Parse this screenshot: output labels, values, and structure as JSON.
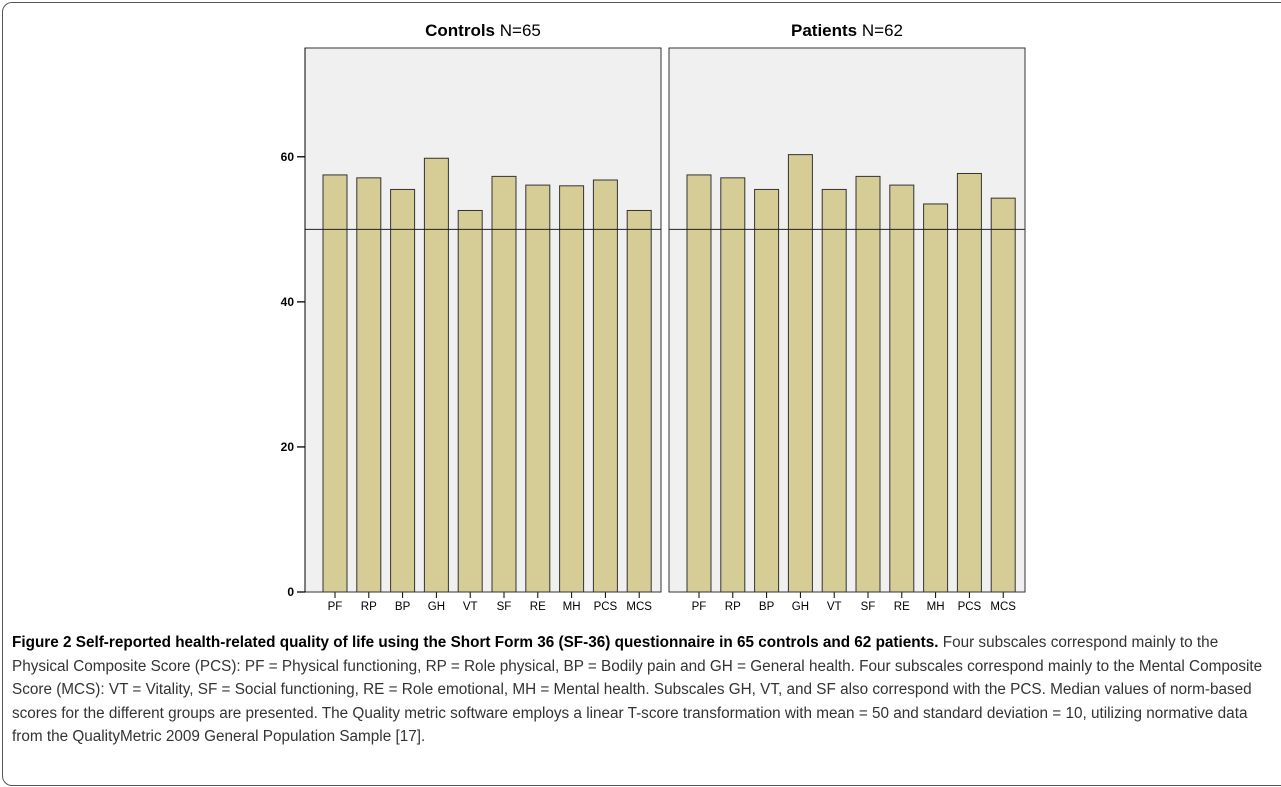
{
  "chart_data": {
    "type": "bar",
    "categories": [
      "PF",
      "RP",
      "BP",
      "GH",
      "VT",
      "SF",
      "RE",
      "MH",
      "PCS",
      "MCS"
    ],
    "ylim": [
      0,
      75
    ],
    "y_ticks": [
      0,
      20,
      40,
      60
    ],
    "reference_line": 50,
    "bar_color": "#d5cc96",
    "bar_edge_color": "#333333",
    "panel_background": "#f0f0f0",
    "panels": [
      {
        "group": "Controls",
        "n_label": "N=65",
        "values": [
          57.5,
          57.1,
          55.5,
          59.8,
          52.6,
          57.3,
          56.1,
          56.0,
          56.8,
          52.6
        ]
      },
      {
        "group": "Patients",
        "n_label": "N=62",
        "values": [
          57.5,
          57.1,
          55.5,
          60.3,
          55.5,
          57.3,
          56.1,
          53.5,
          57.7,
          54.3
        ]
      }
    ]
  },
  "caption": {
    "head": "Figure 2 Self-reported health-related quality of life using the Short Form 36 (SF-36) questionnaire in 65 controls and 62 patients.",
    "body": " Four subscales correspond mainly to the Physical Composite Score (PCS): PF = Physical functioning, RP = Role physical, BP = Bodily pain and GH = General health. Four subscales correspond mainly to the Mental Composite Score (MCS): VT = Vitality, SF = Social functioning, RE = Role emotional, MH = Mental health. Subscales GH, VT, and SF also correspond with the PCS. Median values of norm-based scores for the different groups are presented. The Quality metric software employs a linear T-score transformation with mean = 50 and standard deviation = 10, utilizing normative data from the QualityMetric 2009 General Population Sample [17]."
  }
}
